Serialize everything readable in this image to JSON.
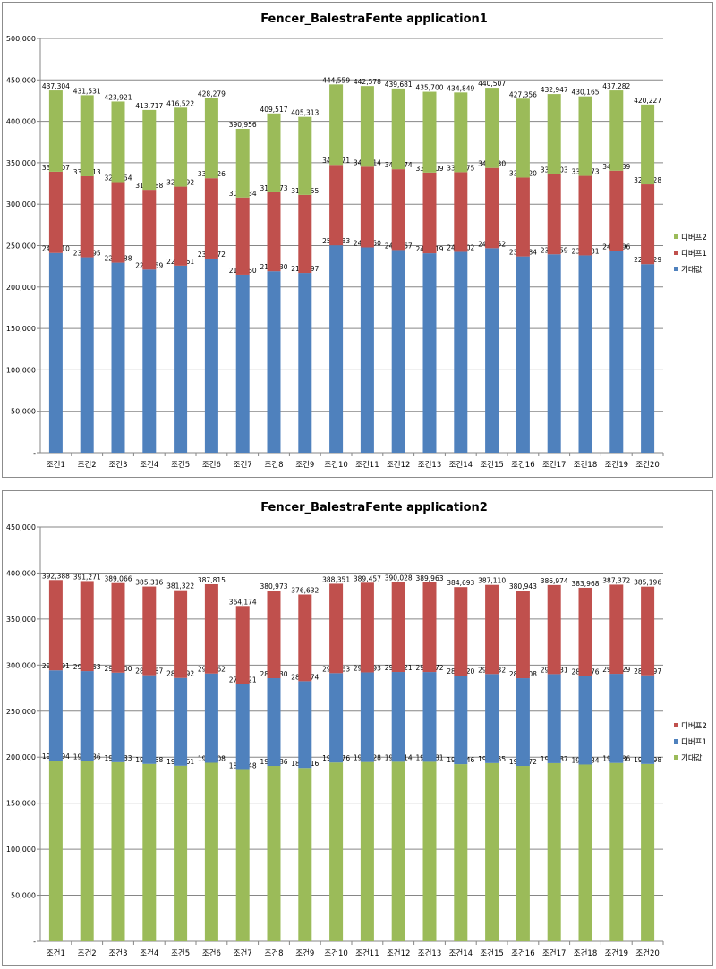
{
  "chart_data": [
    {
      "type": "bar",
      "stacked": true,
      "title": "Fencer_BalestraFente application1",
      "xlabel": "",
      "ylabel": "",
      "ylim": [
        0,
        500000
      ],
      "yticks": [
        "-",
        "50,000",
        "100,000",
        "150,000",
        "200,000",
        "250,000",
        "300,000",
        "350,000",
        "400,000",
        "450,000",
        "500,000"
      ],
      "grid": true,
      "legend_position": "right",
      "categories": [
        "조건1",
        "조건2",
        "조건3",
        "조건4",
        "조건5",
        "조건6",
        "조건7",
        "조건8",
        "조건9",
        "조건10",
        "조건11",
        "조건12",
        "조건13",
        "조건14",
        "조건15",
        "조건16",
        "조건17",
        "조건18",
        "조건19",
        "조건20"
      ],
      "series": [
        {
          "name": "기대값",
          "color": "#4f81bd",
          "labels": [
            "241,110",
            "235,895",
            "229,388",
            "221,059",
            "225,861",
            "234,372",
            "214,960",
            "219,030",
            "216,997",
            "250,383",
            "247,850",
            "244,667",
            "240,719",
            "242,502",
            "246,952",
            "236,884",
            "239,459",
            "238,181",
            "243,596",
            "227,629"
          ],
          "values": [
            241110,
            235895,
            229388,
            221059,
            225861,
            234372,
            214960,
            219030,
            216997,
            250383,
            247850,
            244667,
            240719,
            242502,
            246952,
            236884,
            239459,
            238181,
            243596,
            227629
          ]
        },
        {
          "name": "디버프1",
          "color": "#c0504d",
          "labels": [
            "339,207",
            "333,713",
            "326,654",
            "317,388",
            "321,192",
            "331,326",
            "308,034",
            "314,273",
            "311,155",
            "347,471",
            "345,214",
            "342,174",
            "338,209",
            "338,675",
            "343,730",
            "332,120",
            "336,203",
            "334,173",
            "340,439",
            "323,928"
          ],
          "values": [
            98097,
            97818,
            97266,
            96329,
            95331,
            96954,
            93074,
            95243,
            94158,
            97088,
            97364,
            97507,
            97490,
            96173,
            96778,
            95236,
            96744,
            95992,
            96843,
            96299
          ]
        },
        {
          "name": "디버프2",
          "color": "#9bbb59",
          "labels": [
            "437,304",
            "431,531",
            "423,921",
            "413,717",
            "416,522",
            "428,279",
            "390,956",
            "409,517",
            "405,313",
            "444,559",
            "442,578",
            "439,681",
            "435,700",
            "434,849",
            "440,507",
            "427,356",
            "432,947",
            "430,165",
            "437,282",
            "420,227"
          ],
          "values": [
            98097,
            97818,
            97267,
            96329,
            95330,
            96953,
            82922,
            95244,
            94158,
            97088,
            97364,
            97507,
            97491,
            96174,
            96777,
            95236,
            96744,
            95992,
            96843,
            96299
          ]
        }
      ]
    },
    {
      "type": "bar",
      "stacked": true,
      "title": "Fencer_BalestraFente application2",
      "xlabel": "",
      "ylabel": "",
      "ylim": [
        0,
        450000
      ],
      "yticks": [
        "-",
        "50,000",
        "100,000",
        "150,000",
        "200,000",
        "250,000",
        "300,000",
        "350,000",
        "400,000",
        "450,000"
      ],
      "grid": true,
      "legend_position": "right",
      "categories": [
        "조건1",
        "조건2",
        "조건3",
        "조건4",
        "조건5",
        "조건6",
        "조건7",
        "조건8",
        "조건9",
        "조건10",
        "조건11",
        "조건12",
        "조건13",
        "조건14",
        "조건15",
        "조건16",
        "조건17",
        "조건18",
        "조건19",
        "조건20"
      ],
      "series": [
        {
          "name": "기대값",
          "color": "#9bbb59",
          "labels": [
            "196,194",
            "195,636",
            "194,533",
            "192,658",
            "190,661",
            "193,908",
            "186,148",
            "190,486",
            "188,316",
            "194,176",
            "194,728",
            "195,014",
            "194,981",
            "192,346",
            "193,555",
            "190,472",
            "193,487",
            "191,984",
            "193,686",
            "192,598"
          ],
          "values": [
            196194,
            195636,
            194533,
            192658,
            190661,
            193908,
            186148,
            190486,
            188316,
            194176,
            194728,
            195014,
            194981,
            192346,
            193555,
            190472,
            193487,
            191984,
            193686,
            192598
          ]
        },
        {
          "name": "디버프1",
          "color": "#4f81bd",
          "labels": [
            "294,291",
            "293,453",
            "291,800",
            "288,987",
            "285,992",
            "290,862",
            "279,221",
            "285,730",
            "282,474",
            "291,263",
            "292,093",
            "292,521",
            "292,472",
            "288,520",
            "290,332",
            "285,708",
            "290,231",
            "287,976",
            "290,529",
            "288,897"
          ],
          "values": [
            98097,
            97817,
            97267,
            96329,
            95331,
            96954,
            93073,
            95244,
            94158,
            97087,
            97365,
            97507,
            97491,
            96174,
            96777,
            95236,
            96744,
            95992,
            96843,
            96299
          ]
        },
        {
          "name": "디버프2",
          "color": "#c0504d",
          "labels": [
            "392,388",
            "391,271",
            "389,066",
            "385,316",
            "381,322",
            "387,815",
            "364,174",
            "380,973",
            "376,632",
            "388,351",
            "389,457",
            "390,028",
            "389,963",
            "384,693",
            "387,110",
            "380,943",
            "386,974",
            "383,968",
            "387,372",
            "385,196"
          ],
          "values": [
            98097,
            97818,
            97266,
            96329,
            95330,
            96953,
            84953,
            95243,
            94158,
            97088,
            97364,
            97507,
            97491,
            96173,
            96778,
            95235,
            96743,
            95992,
            96843,
            96299
          ]
        }
      ]
    }
  ]
}
